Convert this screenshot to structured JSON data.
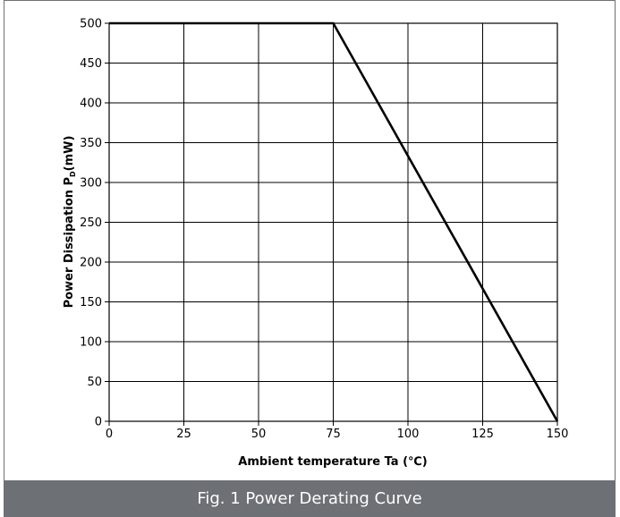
{
  "caption": "Fig. 1 Power Derating Curve",
  "chart_data": {
    "type": "line",
    "title": "",
    "xlabel": "Ambient temperature  Ta (℃)",
    "ylabel_main": "Power Dissipation  P",
    "ylabel_sub": "D",
    "ylabel_unit": "(mW)",
    "xlim": [
      0,
      150
    ],
    "ylim": [
      0,
      500
    ],
    "x_ticks": [
      0,
      25,
      50,
      75,
      100,
      125,
      150
    ],
    "y_ticks": [
      0,
      50,
      100,
      150,
      200,
      250,
      300,
      350,
      400,
      450,
      500
    ],
    "grid": true,
    "series": [
      {
        "x": [
          0,
          75,
          150
        ],
        "y": [
          500,
          500,
          0
        ],
        "color": "#000000"
      }
    ]
  }
}
